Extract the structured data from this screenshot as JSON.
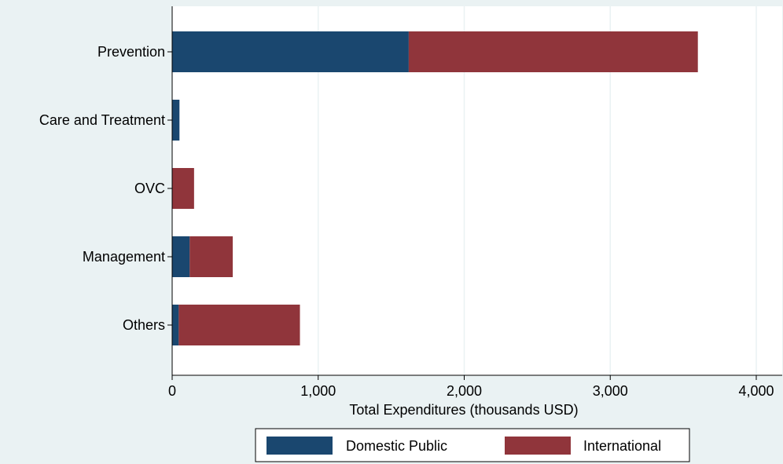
{
  "chart_data": {
    "type": "bar",
    "orientation": "horizontal",
    "stacked": true,
    "categories": [
      "Prevention",
      "Care and Treatment",
      "OVC",
      "Management",
      "Others"
    ],
    "series": [
      {
        "name": "Domestic Public",
        "color": "#1a476f",
        "values": [
          1620,
          50,
          0,
          120,
          45
        ]
      },
      {
        "name": "International",
        "color": "#90353b",
        "values": [
          1980,
          0,
          150,
          295,
          830
        ]
      }
    ],
    "xlabel": "Total Expenditures (thousands USD)",
    "xlim": [
      0,
      4000
    ],
    "xticks": [
      0,
      1000,
      2000,
      3000,
      4000
    ],
    "xtick_labels": [
      "0",
      "1,000",
      "2,000",
      "3,000",
      "4,000"
    ],
    "grid": true,
    "legend_position": "bottom",
    "background_color": "#eaf2f3",
    "plot_background_color": "#ffffff",
    "grid_color": "#eaf2f3"
  }
}
